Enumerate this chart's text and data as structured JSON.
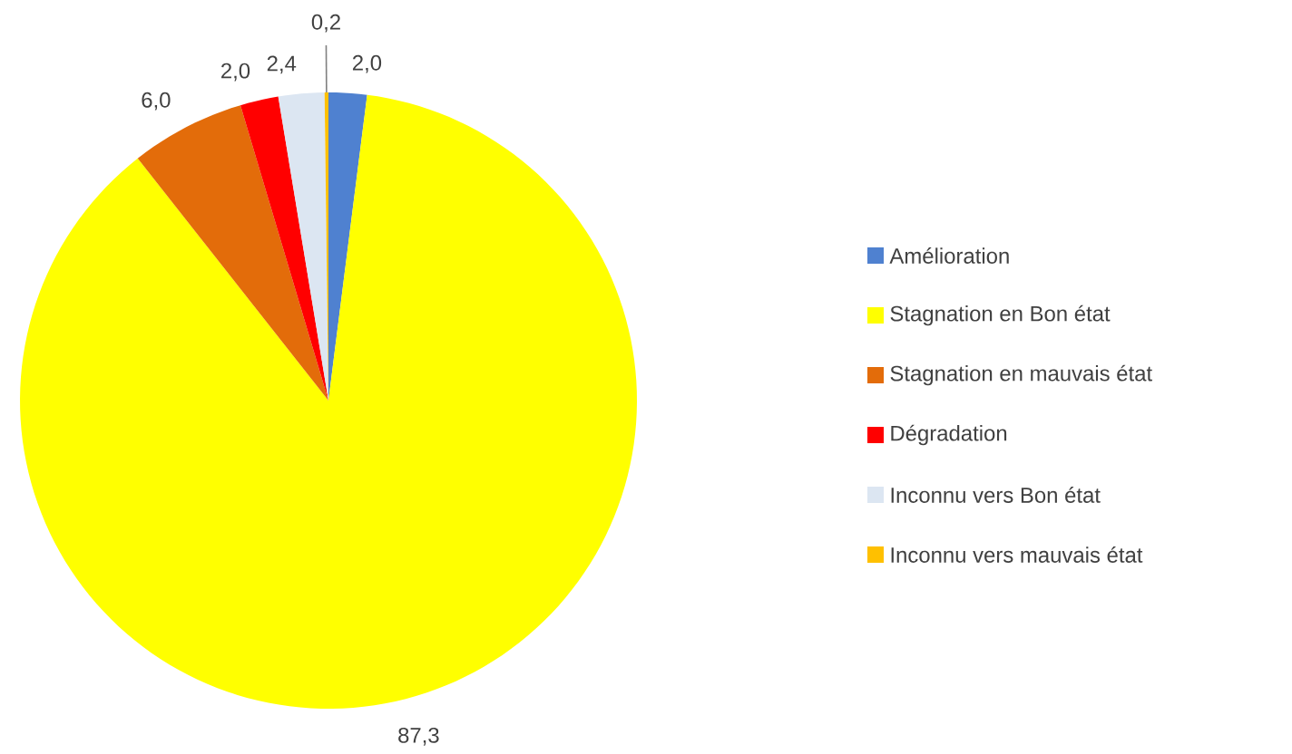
{
  "chart_data": {
    "type": "pie",
    "categories": [
      "Amélioration",
      "Stagnation en Bon état",
      "Stagnation  en mauvais état",
      "Dégradation",
      "Inconnu vers  Bon état",
      "Inconnu vers  mauvais état"
    ],
    "values": [
      2.0,
      87.3,
      6.0,
      2.0,
      2.4,
      0.2
    ],
    "colors": [
      "#4f81d0",
      "#ffff00",
      "#e36c0a",
      "#ff0000",
      "#dce6f2",
      "#ffc000"
    ],
    "value_labels": [
      "2,0",
      "87,3",
      "6,0",
      "2,0",
      "2,4",
      "0,2"
    ],
    "legend": "right"
  }
}
